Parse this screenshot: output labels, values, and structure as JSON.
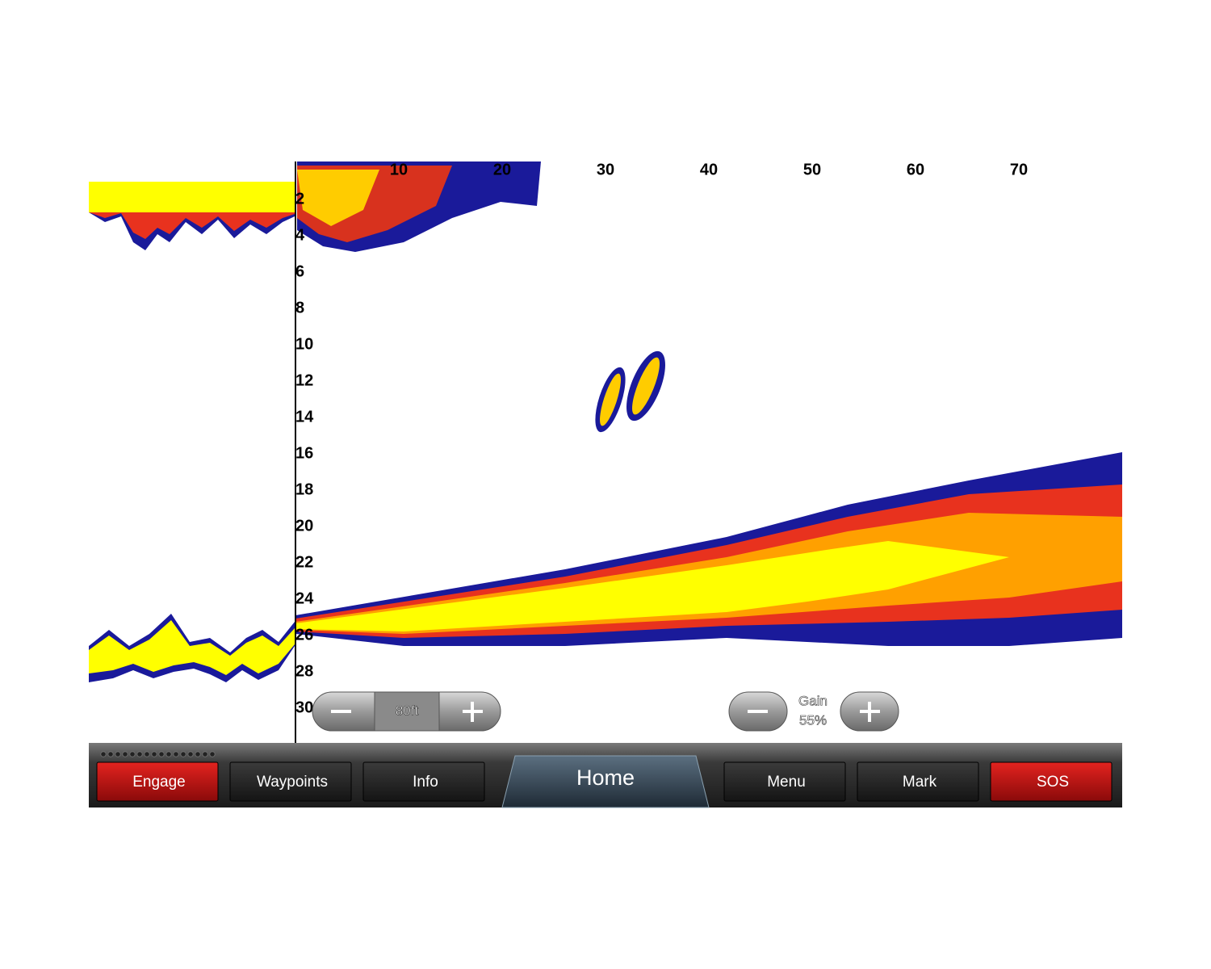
{
  "range_scale": {
    "xticks": [
      10,
      20,
      30,
      40,
      50,
      60,
      70
    ],
    "yticks": [
      2,
      4,
      6,
      8,
      10,
      12,
      14,
      16,
      18,
      20,
      22,
      24,
      26,
      28,
      30
    ]
  },
  "zoom": {
    "range": "80ft"
  },
  "gain": {
    "label": "Gain",
    "value": "55%"
  },
  "nav": [
    "Engage",
    "Waypoints",
    "Info",
    "Home",
    "Menu",
    "Mark",
    "SOS"
  ]
}
